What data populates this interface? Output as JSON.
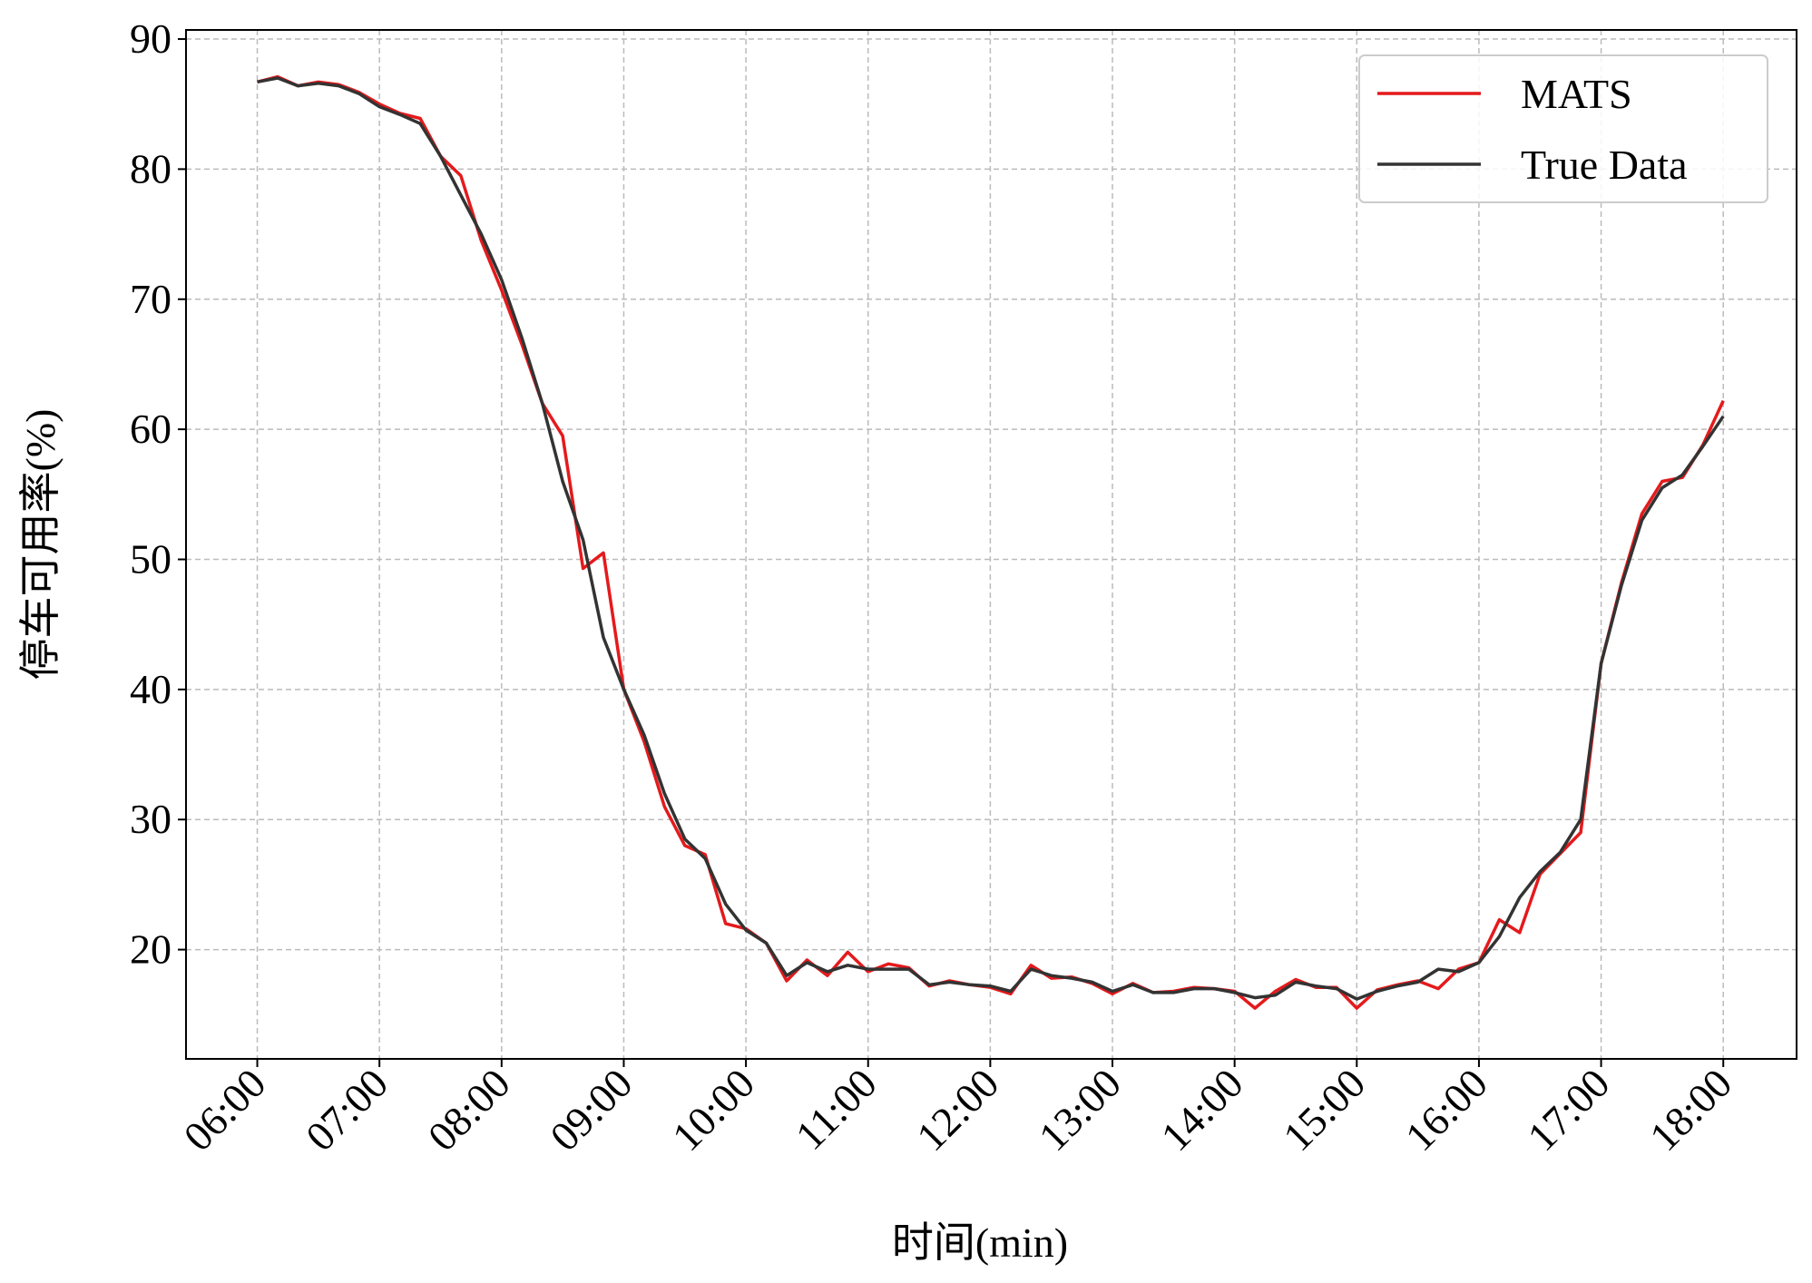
{
  "chart_data": {
    "type": "line",
    "xlabel": "时间(min)",
    "ylabel": "停车可用率(%)",
    "x": [
      "06:00",
      "06:10",
      "06:20",
      "06:30",
      "06:40",
      "06:50",
      "07:00",
      "07:10",
      "07:20",
      "07:30",
      "07:40",
      "07:50",
      "08:00",
      "08:10",
      "08:20",
      "08:30",
      "08:40",
      "08:50",
      "09:00",
      "09:10",
      "09:20",
      "09:30",
      "09:40",
      "09:50",
      "10:00",
      "10:10",
      "10:20",
      "10:30",
      "10:40",
      "10:50",
      "11:00",
      "11:10",
      "11:20",
      "11:30",
      "11:40",
      "11:50",
      "12:00",
      "12:10",
      "12:20",
      "12:30",
      "12:40",
      "12:50",
      "13:00",
      "13:10",
      "13:20",
      "13:30",
      "13:40",
      "13:50",
      "14:00",
      "14:10",
      "14:20",
      "14:30",
      "14:40",
      "14:50",
      "15:00",
      "15:10",
      "15:20",
      "15:30",
      "15:40",
      "15:50",
      "16:00",
      "16:10",
      "16:20",
      "16:30",
      "16:40",
      "16:50",
      "17:00",
      "17:10",
      "17:20",
      "17:30",
      "17:40",
      "17:50",
      "18:00"
    ],
    "series": [
      {
        "name": "MATS",
        "color": "#e41a1c",
        "values": [
          86.7,
          87.1,
          86.4,
          86.7,
          86.5,
          85.9,
          85.0,
          84.3,
          83.9,
          81.0,
          79.5,
          74.5,
          70.7,
          66.5,
          62.0,
          59.5,
          49.3,
          50.5,
          40.0,
          36.0,
          31.0,
          28.0,
          27.3,
          22.0,
          21.6,
          20.5,
          17.6,
          19.2,
          18.0,
          19.8,
          18.3,
          18.9,
          18.6,
          17.2,
          17.6,
          17.3,
          17.1,
          16.6,
          18.8,
          17.8,
          17.9,
          17.4,
          16.6,
          17.4,
          16.7,
          16.8,
          17.1,
          17.0,
          16.8,
          15.5,
          16.8,
          17.7,
          17.1,
          17.1,
          15.5,
          16.9,
          17.3,
          17.6,
          17.0,
          18.5,
          19.0,
          22.3,
          21.3,
          25.8,
          27.4,
          29.0,
          42.0,
          48.2,
          53.5,
          56.0,
          56.3,
          58.8,
          62.2
        ]
      },
      {
        "name": "True Data",
        "color": "#333333",
        "values": [
          86.7,
          87.0,
          86.4,
          86.6,
          86.4,
          85.8,
          84.8,
          84.2,
          83.5,
          81.0,
          78.0,
          75.0,
          71.5,
          67.0,
          62.0,
          56.0,
          51.5,
          44.0,
          40.0,
          36.5,
          32.0,
          28.5,
          27.0,
          23.5,
          21.5,
          20.5,
          18.0,
          19.0,
          18.3,
          18.8,
          18.5,
          18.5,
          18.5,
          17.3,
          17.5,
          17.3,
          17.2,
          16.8,
          18.5,
          18.0,
          17.8,
          17.5,
          16.8,
          17.3,
          16.7,
          16.7,
          17.0,
          17.0,
          16.7,
          16.3,
          16.5,
          17.5,
          17.2,
          17.0,
          16.2,
          16.8,
          17.2,
          17.5,
          18.5,
          18.3,
          19.0,
          21.0,
          24.0,
          26.0,
          27.5,
          30.0,
          42.0,
          48.0,
          53.0,
          55.5,
          56.5,
          58.7,
          61.0
        ]
      }
    ],
    "xlim": [
      "05:25",
      "18:36"
    ],
    "xticks": [
      "06:00",
      "07:00",
      "08:00",
      "09:00",
      "10:00",
      "11:00",
      "12:00",
      "13:00",
      "14:00",
      "15:00",
      "16:00",
      "17:00",
      "18:00"
    ],
    "ylim": [
      11.6,
      90.7
    ],
    "yticks": [
      20,
      30,
      40,
      50,
      60,
      70,
      80,
      90
    ],
    "grid": true,
    "legend": "upper right"
  }
}
